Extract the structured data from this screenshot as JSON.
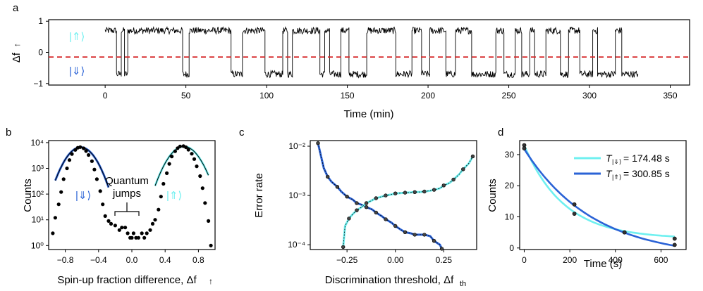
{
  "colors": {
    "dark_blue": "#2b63d6",
    "light_cyan": "#6ff0f0",
    "threshold_red": "#d62728",
    "trace": "#000000"
  },
  "chart_data": [
    {
      "panel": "a",
      "type": "line",
      "xlabel": "Time (min)",
      "ylabel": "Δf ↑",
      "xlim": [
        -35,
        362
      ],
      "ylim": [
        -1.05,
        1.05
      ],
      "xticks": [
        0,
        50,
        100,
        150,
        200,
        250,
        300,
        350
      ],
      "yticks": [
        -1,
        0,
        1
      ],
      "threshold": -0.15,
      "series_extent_min": [
        0,
        330
      ],
      "states": [
        {
          "label": "|⇑⟩",
          "level": 0.65,
          "color": "#6ff0f0"
        },
        {
          "label": "|⇓⟩",
          "level": -0.65,
          "color": "#2b63d6"
        }
      ]
    },
    {
      "panel": "b",
      "type": "scatter",
      "xlabel": "Spin-up fraction difference, Δf ↑",
      "ylabel": "Counts",
      "yscale": "log",
      "xlim": [
        -1.0,
        1.0
      ],
      "ylim": [
        0.7,
        12000
      ],
      "xticks": [
        -0.8,
        -0.4,
        0.0,
        0.4,
        0.8
      ],
      "ytick_labels": [
        "10⁰",
        "10¹",
        "10²",
        "10³",
        "10⁴"
      ],
      "annotation": "Quantum jumps",
      "state_labels": [
        "|⇓⟩",
        "|⇑⟩"
      ],
      "points": [
        [
          -0.95,
          3
        ],
        [
          -0.92,
          12
        ],
        [
          -0.88,
          40
        ],
        [
          -0.85,
          120
        ],
        [
          -0.82,
          380
        ],
        [
          -0.78,
          1000
        ],
        [
          -0.75,
          2100
        ],
        [
          -0.72,
          3600
        ],
        [
          -0.68,
          5200
        ],
        [
          -0.65,
          6300
        ],
        [
          -0.62,
          6700
        ],
        [
          -0.58,
          6000
        ],
        [
          -0.55,
          4700
        ],
        [
          -0.52,
          3300
        ],
        [
          -0.48,
          1900
        ],
        [
          -0.45,
          900
        ],
        [
          -0.42,
          380
        ],
        [
          -0.38,
          130
        ],
        [
          -0.35,
          40
        ],
        [
          -0.32,
          14
        ],
        [
          -0.28,
          9
        ],
        [
          -0.25,
          7
        ],
        [
          -0.2,
          6
        ],
        [
          -0.15,
          4
        ],
        [
          -0.12,
          5
        ],
        [
          -0.08,
          5
        ],
        [
          -0.05,
          3
        ],
        [
          -0.02,
          2
        ],
        [
          0.0,
          2
        ],
        [
          0.02,
          3
        ],
        [
          0.05,
          2
        ],
        [
          0.08,
          2
        ],
        [
          0.12,
          3
        ],
        [
          0.15,
          2
        ],
        [
          0.18,
          3
        ],
        [
          0.22,
          4
        ],
        [
          0.25,
          7
        ],
        [
          0.28,
          10
        ],
        [
          0.32,
          25
        ],
        [
          0.35,
          80
        ],
        [
          0.38,
          250
        ],
        [
          0.42,
          650
        ],
        [
          0.45,
          1500
        ],
        [
          0.48,
          2900
        ],
        [
          0.52,
          4600
        ],
        [
          0.55,
          6100
        ],
        [
          0.58,
          7100
        ],
        [
          0.62,
          7300
        ],
        [
          0.65,
          6600
        ],
        [
          0.68,
          5300
        ],
        [
          0.72,
          3700
        ],
        [
          0.75,
          2300
        ],
        [
          0.78,
          1200
        ],
        [
          0.82,
          500
        ],
        [
          0.85,
          170
        ],
        [
          0.88,
          45
        ],
        [
          0.92,
          9
        ],
        [
          0.95,
          1
        ]
      ],
      "fit_down": {
        "x0": -0.615,
        "sigma": 0.125,
        "amp": 6600,
        "range": [
          -0.92,
          -0.28
        ]
      },
      "fit_up": {
        "x0": 0.625,
        "sigma": 0.13,
        "amp": 7100,
        "range": [
          0.28,
          0.92
        ]
      }
    },
    {
      "panel": "c",
      "type": "line",
      "xlabel": "Discrimination threshold, Δf",
      "xlabel_sub": "th",
      "ylabel": "Error rate",
      "yscale": "log",
      "xlim": [
        -0.44,
        0.42
      ],
      "ylim": [
        8e-05,
        0.013
      ],
      "xticks": [
        -0.25,
        0.0,
        0.25
      ],
      "ytick_labels": [
        "10⁻⁴",
        "10⁻³",
        "10⁻²"
      ],
      "series": [
        {
          "name": "down",
          "color": "#2b63d6",
          "points": [
            [
              -0.4,
              0.0115
            ],
            [
              -0.37,
              0.0036
            ],
            [
              -0.35,
              0.0024
            ],
            [
              -0.33,
              0.0019
            ],
            [
              -0.3,
              0.0015
            ],
            [
              -0.28,
              0.0012
            ],
            [
              -0.25,
              0.00095
            ],
            [
              -0.22,
              0.00082
            ],
            [
              -0.2,
              0.0007
            ],
            [
              -0.17,
              0.00064
            ],
            [
              -0.15,
              0.00058
            ],
            [
              -0.12,
              0.00052
            ],
            [
              -0.1,
              0.00045
            ],
            [
              -0.07,
              0.00038
            ],
            [
              -0.05,
              0.00033
            ],
            [
              -0.02,
              0.00028
            ],
            [
              0.0,
              0.00024
            ],
            [
              0.03,
              0.0002
            ],
            [
              0.05,
              0.00018
            ],
            [
              0.08,
              0.00017
            ],
            [
              0.1,
              0.00016
            ],
            [
              0.13,
              0.00016
            ],
            [
              0.15,
              0.00016
            ],
            [
              0.18,
              0.00015
            ],
            [
              0.2,
              0.00012
            ],
            [
              0.23,
              0.0001
            ],
            [
              0.24,
              8.3e-05
            ]
          ]
        },
        {
          "name": "up",
          "color": "#6ff0f0",
          "points": [
            [
              -0.27,
              9e-05
            ],
            [
              -0.26,
              0.00024
            ],
            [
              -0.24,
              0.00034
            ],
            [
              -0.22,
              0.00042
            ],
            [
              -0.2,
              0.0005
            ],
            [
              -0.17,
              0.0006
            ],
            [
              -0.15,
              0.0007
            ],
            [
              -0.12,
              0.0008
            ],
            [
              -0.1,
              0.00088
            ],
            [
              -0.07,
              0.00095
            ],
            [
              -0.05,
              0.001
            ],
            [
              -0.02,
              0.00105
            ],
            [
              0.0,
              0.0011
            ],
            [
              0.03,
              0.00112
            ],
            [
              0.05,
              0.00114
            ],
            [
              0.08,
              0.00115
            ],
            [
              0.1,
              0.00117
            ],
            [
              0.13,
              0.00118
            ],
            [
              0.15,
              0.0012
            ],
            [
              0.18,
              0.00125
            ],
            [
              0.2,
              0.0013
            ],
            [
              0.23,
              0.0014
            ],
            [
              0.25,
              0.0016
            ],
            [
              0.28,
              0.0018
            ],
            [
              0.3,
              0.0021
            ],
            [
              0.33,
              0.0027
            ],
            [
              0.35,
              0.0034
            ],
            [
              0.38,
              0.0045
            ],
            [
              0.4,
              0.0062
            ]
          ]
        }
      ]
    },
    {
      "panel": "d",
      "type": "line",
      "xlabel": "Time (s)",
      "ylabel": "Counts",
      "xlim": [
        -20,
        710
      ],
      "ylim": [
        -0.5,
        34.5
      ],
      "xticks": [
        0,
        200,
        400,
        600
      ],
      "yticks": [
        0,
        10,
        20,
        30
      ],
      "series": [
        {
          "name": "T|⇓⟩",
          "legend_label": "= 174.48 s",
          "color": "#6ff0f0",
          "tau": 174.48,
          "amp": 30,
          "offset": 3,
          "points": [
            [
              0,
              33
            ],
            [
              220,
              11
            ],
            [
              440,
              5
            ],
            [
              660,
              3
            ]
          ]
        },
        {
          "name": "T|⇑⟩",
          "legend_label": "= 300.85 s",
          "color": "#2b63d6",
          "tau": 300.85,
          "amp": 35,
          "offset": -3.2,
          "points": [
            [
              0,
              32
            ],
            [
              220,
              14
            ],
            [
              440,
              5
            ],
            [
              660,
              1
            ]
          ]
        }
      ]
    }
  ],
  "panel_letters": [
    "a",
    "b",
    "c",
    "d"
  ],
  "labels": {
    "a_xlabel": "Time (min)",
    "a_ylabel_main": "Δf",
    "a_ylabel_arrow": "↑",
    "a_state_up": "|⇑⟩",
    "a_state_down": "|⇓⟩",
    "b_ylabel": "Counts",
    "b_xlabel_main": "Spin-up fraction difference, Δf",
    "b_xlabel_arrow": "↑",
    "b_quantum": "Quantum",
    "b_jumps": "jumps",
    "b_state_down": "|⇓⟩",
    "b_state_up": "|⇑⟩",
    "c_ylabel": "Error rate",
    "c_xlabel_main": "Discrimination threshold, Δf",
    "c_xlabel_sub": "th",
    "d_ylabel": "Counts",
    "d_xlabel": "Time (s)",
    "d_legend1_T": "T",
    "d_legend1_sub": "|⇓⟩",
    "d_legend1_val": "= 174.48 s",
    "d_legend2_T": "T",
    "d_legend2_sub": "|⇑⟩",
    "d_legend2_val": "= 300.85 s"
  }
}
